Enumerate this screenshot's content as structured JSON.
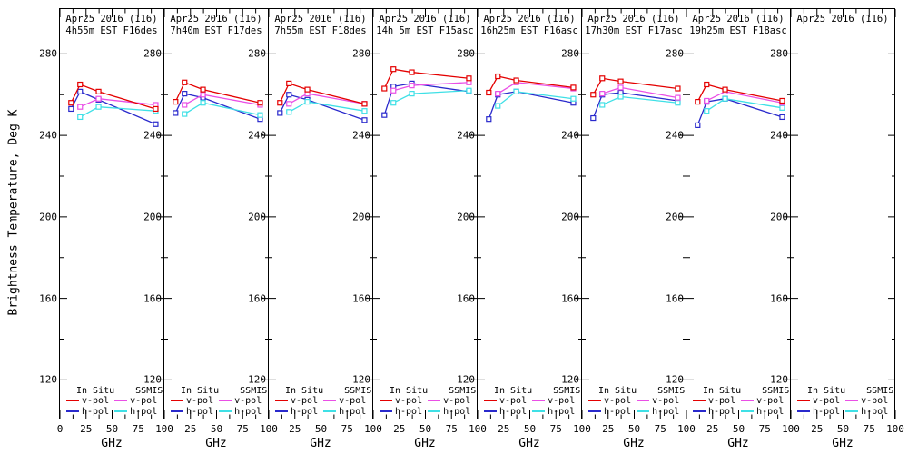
{
  "figure": {
    "legend": {
      "col1_header": "In Situ",
      "col2_header": "SSMIS",
      "vpol_label": "v-pol",
      "hpol_label": "h-pol"
    },
    "colors": {
      "insitu_v": "#e40000",
      "insitu_h": "#2929cc",
      "ssmis_v": "#ea4fe6",
      "ssmis_h": "#3fe0e6",
      "axis": "#000000",
      "background": "#ffffff"
    }
  },
  "chart_data": {
    "type": "line",
    "ylabel": "Brightness Temperature, Deg K",
    "xlabel": "GHz",
    "xlim": [
      0,
      100
    ],
    "ylim": [
      101,
      302
    ],
    "grid": false,
    "legend_position": "bottom-inside-each-panel",
    "axes": {
      "y_ticks": [
        280,
        240,
        200,
        160,
        120
      ],
      "y_minor_ticks": [
        260,
        220,
        180,
        140
      ],
      "x_ticks": [
        0,
        25,
        50,
        75,
        100
      ],
      "x_minor_ticks": [
        12.5,
        37.5,
        62.5,
        87.5
      ]
    },
    "insitu_x": [
      10.7,
      19.35,
      37,
      91.7
    ],
    "ssmis_x": [
      19.35,
      37,
      91.7
    ],
    "panels": [
      {
        "title1": "Apr25 2016 (116)",
        "title2": "4h55m EST F16des",
        "series": {
          "insitu_v": [
            256,
            265,
            261.5,
            253
          ],
          "insitu_h": [
            253,
            261.5,
            257.5,
            245.5
          ],
          "ssmis_v": [
            254,
            258,
            255
          ],
          "ssmis_h": [
            249,
            254,
            252
          ]
        }
      },
      {
        "title1": "Apr25 2016 (116)",
        "title2": "7h40m EST F17des",
        "series": {
          "insitu_v": [
            256.5,
            266,
            262.5,
            256
          ],
          "insitu_h": [
            251,
            260.5,
            258.5,
            248
          ],
          "ssmis_v": [
            255,
            260,
            255
          ],
          "ssmis_h": [
            250.5,
            256,
            250
          ]
        }
      },
      {
        "title1": "Apr25 2016 (116)",
        "title2": "7h55m EST F18des",
        "series": {
          "insitu_v": [
            256,
            265.5,
            262.5,
            255.5
          ],
          "insitu_h": [
            251,
            260,
            257.5,
            247.5
          ],
          "ssmis_v": [
            255.5,
            260.5,
            255.5
          ],
          "ssmis_h": [
            251.5,
            256.5,
            252
          ]
        }
      },
      {
        "title1": "Apr25 2016 (116)",
        "title2": "14h 5m EST F15asc",
        "series": {
          "insitu_v": [
            263,
            272.5,
            271,
            268
          ],
          "insitu_h": [
            250,
            264,
            265.5,
            261.5
          ],
          "ssmis_v": [
            262,
            264.5,
            266
          ],
          "ssmis_h": [
            256,
            260.5,
            262
          ]
        }
      },
      {
        "title1": "Apr25 2016 (116)",
        "title2": "16h25m EST F16asc",
        "series": {
          "insitu_v": [
            261,
            269,
            267,
            263.5
          ],
          "insitu_h": [
            248,
            260,
            261.5,
            256
          ],
          "ssmis_v": [
            260.5,
            266,
            263
          ],
          "ssmis_h": [
            254.5,
            261.5,
            258
          ]
        }
      },
      {
        "title1": "Apr25 2016 (116)",
        "title2": "17h30m EST F17asc",
        "series": {
          "insitu_v": [
            260,
            268,
            266.5,
            263
          ],
          "insitu_h": [
            248.5,
            260,
            261,
            257
          ],
          "ssmis_v": [
            260.5,
            263.5,
            258.5
          ],
          "ssmis_h": [
            255,
            259,
            256
          ]
        }
      },
      {
        "title1": "Apr25 2016 (116)",
        "title2": "19h25m EST F18asc",
        "series": {
          "insitu_v": [
            256.5,
            265,
            262.5,
            257
          ],
          "insitu_h": [
            245,
            256.5,
            258,
            249
          ],
          "ssmis_v": [
            257,
            261.5,
            256
          ],
          "ssmis_h": [
            252,
            258,
            253.5
          ]
        }
      },
      {
        "title1": "Apr25 2016 (116)",
        "title2": "",
        "series": {}
      }
    ]
  }
}
